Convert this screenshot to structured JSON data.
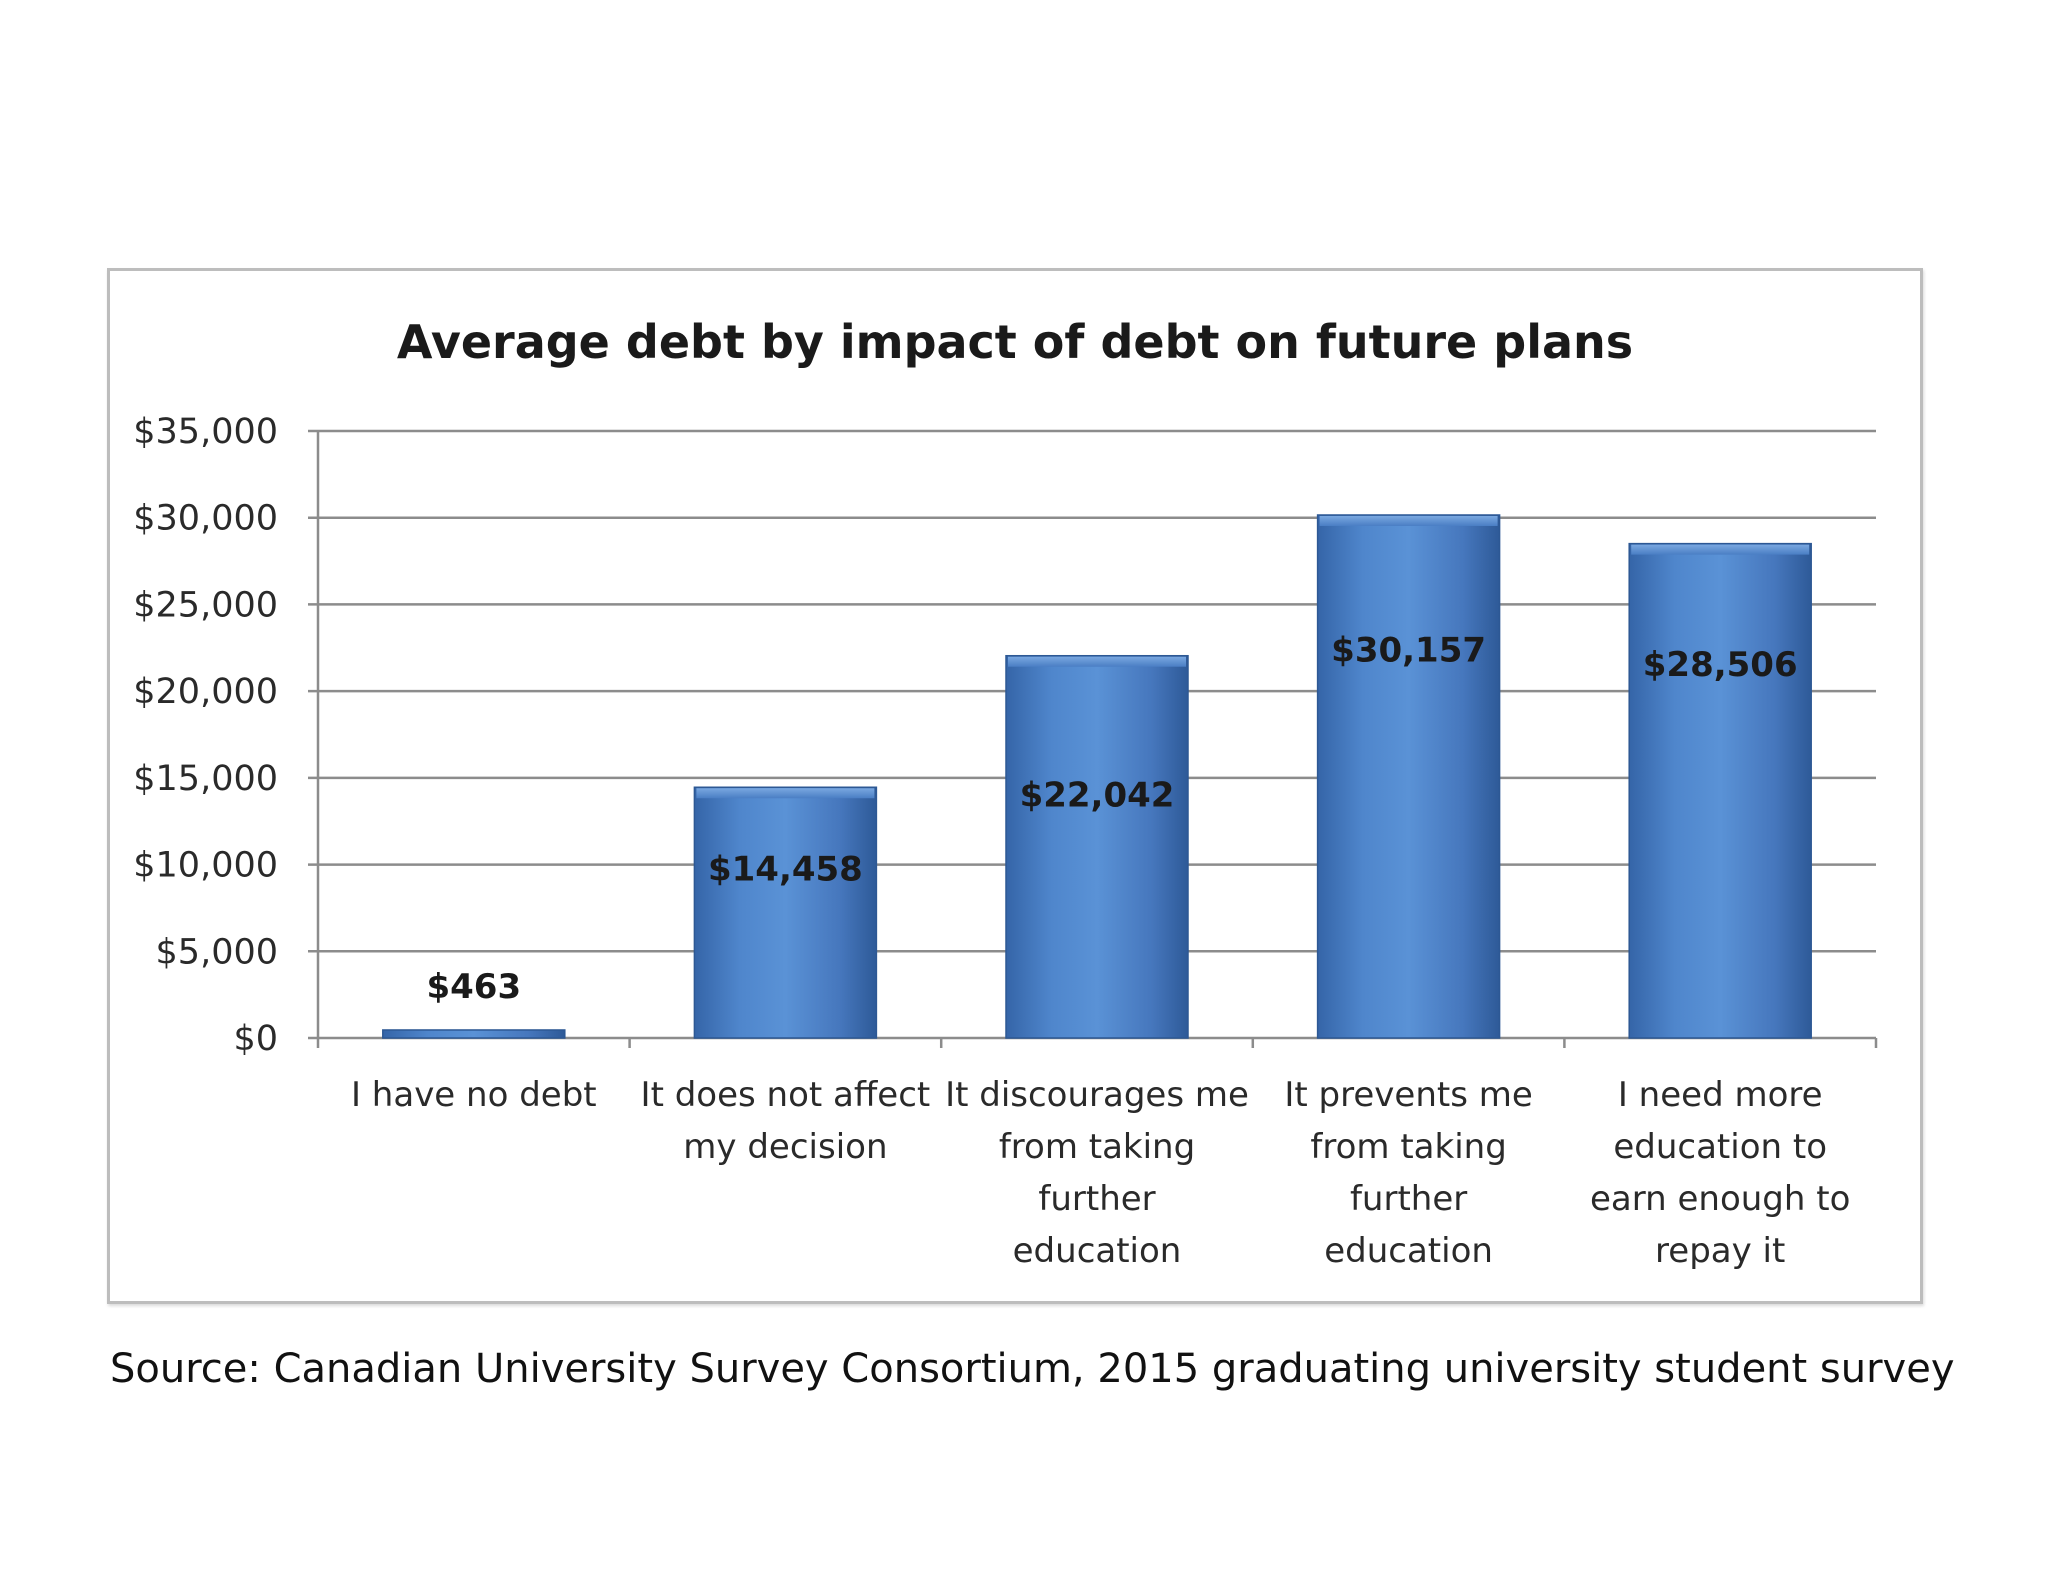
{
  "chart_data": {
    "type": "bar",
    "title": "Average debt by impact of debt on future plans",
    "xlabel": "",
    "ylabel": "",
    "ylim": [
      0,
      35000
    ],
    "yticks": [
      0,
      5000,
      10000,
      15000,
      20000,
      25000,
      30000,
      35000
    ],
    "ytick_labels": [
      "$0",
      "$5,000",
      "$10,000",
      "$15,000",
      "$20,000",
      "$25,000",
      "$30,000",
      "$35,000"
    ],
    "grid": true,
    "legend": "none",
    "bar_color": "#4a7ec4",
    "categories": [
      [
        "I have no debt"
      ],
      [
        "It does not affect",
        "my decision"
      ],
      [
        "It discourages me",
        "from taking",
        "further",
        "education"
      ],
      [
        "It prevents me",
        "from taking",
        "further",
        "education"
      ],
      [
        "I need more",
        "education to",
        "earn enough to",
        "repay it"
      ]
    ],
    "values": [
      463,
      14458,
      22042,
      30157,
      28506
    ],
    "data_labels": [
      "$463",
      "$14,458",
      "$22,042",
      "$30,157",
      "$28,506"
    ]
  },
  "caption": "Source: Canadian University Survey Consortium, 2015 graduating university student survey"
}
